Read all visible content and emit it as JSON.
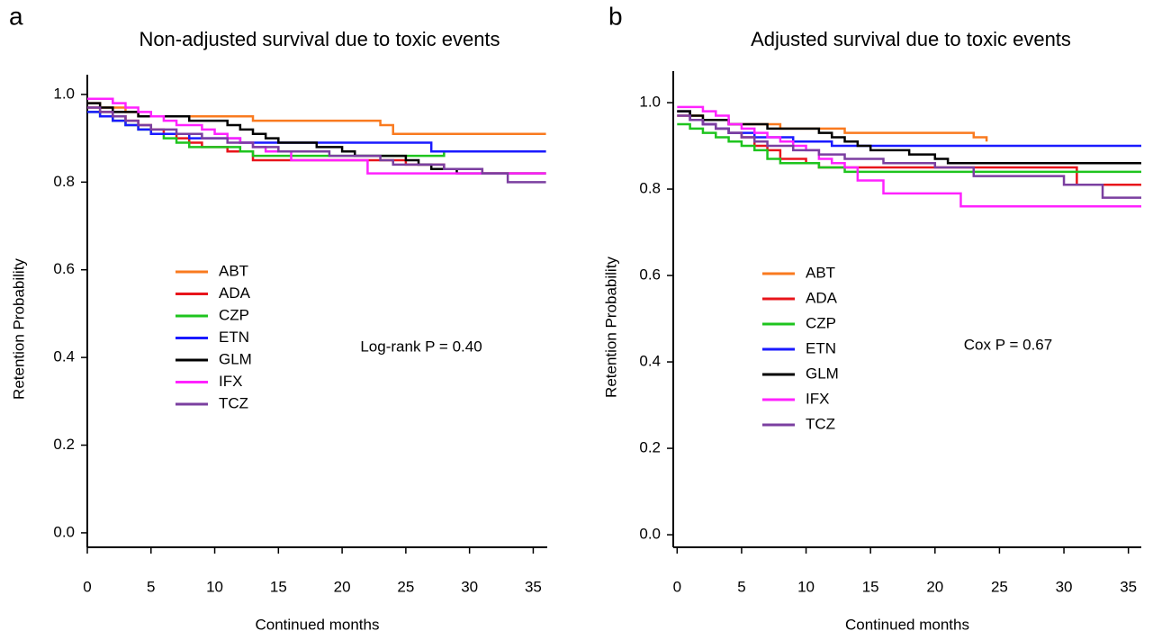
{
  "chart_data": [
    {
      "type": "line",
      "step": true,
      "panel": "a",
      "title": "Non-adjusted survival due to toxic events",
      "xlabel": "Continued months",
      "ylabel": "Retention Probability",
      "annotation": "Log-rank P = 0.40",
      "x": [
        0,
        1,
        2,
        3,
        4,
        5,
        6,
        7,
        8,
        9,
        10,
        11,
        12,
        13,
        14,
        15,
        16,
        17,
        18,
        19,
        20,
        21,
        22,
        23,
        24,
        25,
        26,
        27,
        28,
        29,
        30,
        31,
        32,
        33,
        34,
        35,
        36
      ],
      "xlim": [
        0,
        36.1
      ],
      "ylim": [
        -0.033,
        1.045
      ],
      "xticks": [
        0,
        5,
        10,
        15,
        20,
        25,
        30,
        35
      ],
      "yticks": [
        {
          "value": 0,
          "label": "0.0"
        },
        0.2,
        0.4,
        0.6,
        0.8,
        {
          "value": 1,
          "label": "1.0"
        }
      ],
      "series": [
        {
          "name": "ABT",
          "color": "#f97a1f",
          "values": [
            0.98,
            0.97,
            0.97,
            0.96,
            0.95,
            0.95,
            0.95,
            0.95,
            0.95,
            0.95,
            0.95,
            0.95,
            0.95,
            0.94,
            0.94,
            0.94,
            0.94,
            0.94,
            0.94,
            0.94,
            0.94,
            0.94,
            0.94,
            0.93,
            0.91,
            0.91,
            0.91,
            0.91,
            0.91,
            0.91,
            0.91,
            0.91,
            0.91,
            0.91,
            0.91,
            0.91,
            0.91
          ]
        },
        {
          "name": "ADA",
          "color": "#e8141b",
          "values": [
            0.97,
            0.96,
            0.95,
            0.94,
            0.93,
            0.92,
            0.91,
            0.9,
            0.89,
            0.88,
            0.88,
            0.87,
            0.87,
            0.85,
            0.85,
            0.85,
            0.85,
            0.85,
            0.85,
            0.85,
            0.85,
            0.85,
            0.85,
            0.85,
            0.85,
            0.84,
            0.84,
            0.84,
            0.83,
            0.83,
            0.83,
            0.82,
            0.82,
            0.82,
            0.82,
            0.82,
            0.82
          ]
        },
        {
          "name": "CZP",
          "color": "#1ec41e",
          "values": [
            0.96,
            0.95,
            0.94,
            0.93,
            0.92,
            0.91,
            0.9,
            0.89,
            0.88,
            0.88,
            0.88,
            0.88,
            0.87,
            0.86,
            0.86,
            0.86,
            0.86,
            0.86,
            0.86,
            0.86,
            0.86,
            0.86,
            0.86,
            0.86,
            0.86,
            0.86,
            0.86,
            0.86,
            0.87,
            0.87,
            0.87,
            0.87,
            0.87,
            0.87,
            0.87,
            0.87,
            0.87
          ]
        },
        {
          "name": "ETN",
          "color": "#1a1aff",
          "values": [
            0.96,
            0.95,
            0.94,
            0.93,
            0.92,
            0.91,
            0.91,
            0.91,
            0.9,
            0.9,
            0.9,
            0.9,
            0.89,
            0.89,
            0.89,
            0.89,
            0.89,
            0.89,
            0.89,
            0.89,
            0.89,
            0.89,
            0.89,
            0.89,
            0.89,
            0.89,
            0.89,
            0.87,
            0.87,
            0.87,
            0.87,
            0.87,
            0.87,
            0.87,
            0.87,
            0.87,
            0.87
          ]
        },
        {
          "name": "GLM",
          "color": "#000000",
          "values": [
            0.98,
            0.97,
            0.96,
            0.96,
            0.95,
            0.95,
            0.95,
            0.95,
            0.94,
            0.94,
            0.94,
            0.93,
            0.92,
            0.91,
            0.9,
            0.89,
            0.89,
            0.89,
            0.88,
            0.88,
            0.87,
            0.86,
            0.86,
            0.86,
            0.86,
            0.85,
            0.84,
            0.83,
            0.83,
            0.82,
            0.82,
            0.82,
            0.82,
            0.82,
            0.82,
            0.82,
            0.82
          ]
        },
        {
          "name": "IFX",
          "color": "#ff22ff",
          "values": [
            0.99,
            0.99,
            0.98,
            0.97,
            0.96,
            0.95,
            0.94,
            0.93,
            0.93,
            0.92,
            0.91,
            0.9,
            0.89,
            0.88,
            0.87,
            0.87,
            0.85,
            0.85,
            0.85,
            0.85,
            0.85,
            0.85,
            0.82,
            0.82,
            0.82,
            0.82,
            0.82,
            0.82,
            0.82,
            0.82,
            0.82,
            0.82,
            0.82,
            0.82,
            0.82,
            0.82,
            0.82
          ]
        },
        {
          "name": "TCZ",
          "color": "#7b3fa0",
          "values": [
            0.97,
            0.96,
            0.95,
            0.94,
            0.93,
            0.92,
            0.92,
            0.91,
            0.91,
            0.9,
            0.9,
            0.89,
            0.89,
            0.88,
            0.88,
            0.87,
            0.87,
            0.87,
            0.87,
            0.86,
            0.86,
            0.86,
            0.86,
            0.85,
            0.84,
            0.84,
            0.84,
            0.84,
            0.83,
            0.83,
            0.83,
            0.82,
            0.82,
            0.8,
            0.8,
            0.8,
            0.8
          ]
        }
      ]
    },
    {
      "type": "line",
      "step": true,
      "panel": "b",
      "title": "Adjusted survival due to toxic events",
      "xlabel": "Continued months",
      "ylabel": "Retention Probability",
      "annotation": "Cox P = 0.67",
      "x": [
        0,
        1,
        2,
        3,
        4,
        5,
        6,
        7,
        8,
        9,
        10,
        11,
        12,
        13,
        14,
        15,
        16,
        17,
        18,
        19,
        20,
        21,
        22,
        23,
        24,
        25,
        26,
        27,
        28,
        29,
        30,
        31,
        32,
        33,
        34,
        35,
        36
      ],
      "xlim": [
        -0.3,
        36
      ],
      "ylim": [
        -0.029,
        1.073
      ],
      "xticks": [
        0,
        5,
        10,
        15,
        20,
        25,
        30,
        35
      ],
      "yticks": [
        {
          "value": 0,
          "label": "0.0"
        },
        0.2,
        0.4,
        0.6,
        0.8,
        {
          "value": 1,
          "label": "1.0"
        }
      ],
      "series": [
        {
          "name": "ABT",
          "color": "#f97a1f",
          "values": [
            0.98,
            0.97,
            0.96,
            0.96,
            0.95,
            0.95,
            0.95,
            0.95,
            0.94,
            0.94,
            0.94,
            0.94,
            0.94,
            0.93,
            0.93,
            0.93,
            0.93,
            0.93,
            0.93,
            0.93,
            0.93,
            0.93,
            0.93,
            0.92,
            0.91,
            null,
            null,
            null,
            null,
            null,
            null,
            null,
            null,
            null,
            null,
            null,
            null
          ]
        },
        {
          "name": "ADA",
          "color": "#e8141b",
          "values": [
            0.97,
            0.96,
            0.95,
            0.94,
            0.93,
            0.92,
            0.9,
            0.89,
            0.87,
            0.87,
            0.86,
            0.85,
            0.85,
            0.85,
            0.85,
            0.85,
            0.85,
            0.85,
            0.85,
            0.85,
            0.85,
            0.85,
            0.85,
            0.85,
            0.85,
            0.85,
            0.85,
            0.85,
            0.85,
            0.85,
            0.85,
            0.81,
            0.81,
            0.81,
            0.81,
            0.81,
            0.81
          ]
        },
        {
          "name": "CZP",
          "color": "#1ec41e",
          "values": [
            0.95,
            0.94,
            0.93,
            0.92,
            0.91,
            0.9,
            0.89,
            0.87,
            0.86,
            0.86,
            0.86,
            0.85,
            0.85,
            0.84,
            0.84,
            0.84,
            0.84,
            0.84,
            0.84,
            0.84,
            0.84,
            0.84,
            0.84,
            0.84,
            0.84,
            0.84,
            0.84,
            0.84,
            0.84,
            0.84,
            0.84,
            0.84,
            0.84,
            0.84,
            0.84,
            0.84,
            0.84
          ]
        },
        {
          "name": "ETN",
          "color": "#1a1aff",
          "values": [
            0.98,
            0.96,
            0.95,
            0.94,
            0.93,
            0.93,
            0.92,
            0.92,
            0.92,
            0.91,
            0.91,
            0.91,
            0.9,
            0.9,
            0.9,
            0.9,
            0.9,
            0.9,
            0.9,
            0.9,
            0.9,
            0.9,
            0.9,
            0.9,
            0.9,
            0.9,
            0.9,
            0.9,
            0.9,
            0.9,
            0.9,
            0.9,
            0.9,
            0.9,
            0.9,
            0.9,
            0.9
          ]
        },
        {
          "name": "GLM",
          "color": "#000000",
          "values": [
            0.98,
            0.97,
            0.96,
            0.96,
            0.95,
            0.95,
            0.95,
            0.94,
            0.94,
            0.94,
            0.94,
            0.93,
            0.92,
            0.91,
            0.9,
            0.89,
            0.89,
            0.89,
            0.88,
            0.88,
            0.87,
            0.86,
            0.86,
            0.86,
            0.86,
            0.86,
            0.86,
            0.86,
            0.86,
            0.86,
            0.86,
            0.86,
            0.86,
            0.86,
            0.86,
            0.86,
            0.86
          ]
        },
        {
          "name": "IFX",
          "color": "#ff22ff",
          "values": [
            0.99,
            0.99,
            0.98,
            0.97,
            0.95,
            0.94,
            0.93,
            0.92,
            0.91,
            0.9,
            0.89,
            0.87,
            0.86,
            0.85,
            0.82,
            0.82,
            0.79,
            0.79,
            0.79,
            0.79,
            0.79,
            0.79,
            0.76,
            0.76,
            0.76,
            0.76,
            0.76,
            0.76,
            0.76,
            0.76,
            0.76,
            0.76,
            0.76,
            0.76,
            0.76,
            0.76,
            0.76
          ]
        },
        {
          "name": "TCZ",
          "color": "#7b3fa0",
          "values": [
            0.97,
            0.96,
            0.95,
            0.94,
            0.93,
            0.92,
            0.91,
            0.9,
            0.9,
            0.89,
            0.89,
            0.88,
            0.88,
            0.87,
            0.87,
            0.87,
            0.86,
            0.86,
            0.86,
            0.86,
            0.85,
            0.85,
            0.85,
            0.83,
            0.83,
            0.83,
            0.83,
            0.83,
            0.83,
            0.83,
            0.81,
            0.81,
            0.81,
            0.78,
            0.78,
            0.78,
            0.78
          ]
        }
      ]
    }
  ]
}
